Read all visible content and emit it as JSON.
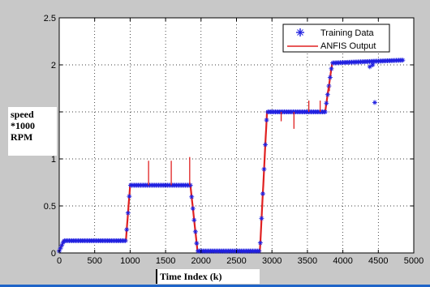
{
  "chart_data": {
    "type": "line",
    "xlabel": "Time Index (k)",
    "ylabel_lines": [
      "speed",
      "*1000",
      "RPM"
    ],
    "xlim": [
      0,
      5000
    ],
    "ylim": [
      0,
      2.5
    ],
    "xticks": [
      0,
      500,
      1000,
      1500,
      2000,
      2500,
      3000,
      3500,
      4000,
      4500,
      5000
    ],
    "yticks": [
      0,
      0.5,
      1,
      1.5,
      2,
      2.5
    ],
    "grid": true,
    "legend_position": "top-right",
    "colors": {
      "training": "#2020e0",
      "anfis": "#e02020"
    },
    "series": [
      {
        "name": "Training Data",
        "style": "markers",
        "segments": [
          {
            "x": [
              0,
              60
            ],
            "y": [
              0.02,
              0.12
            ]
          },
          {
            "x": [
              60,
              940
            ],
            "y": [
              0.13,
              0.13
            ]
          },
          {
            "x": [
              940,
              1000
            ],
            "y": [
              0.13,
              0.72
            ]
          },
          {
            "x": [
              1000,
              1850
            ],
            "y": [
              0.72,
              0.72
            ]
          },
          {
            "x": [
              1850,
              1950
            ],
            "y": [
              0.72,
              0.02
            ]
          },
          {
            "x": [
              1950,
              2830
            ],
            "y": [
              0.02,
              0.02
            ]
          },
          {
            "x": [
              2830,
              2930
            ],
            "y": [
              0.02,
              1.5
            ]
          },
          {
            "x": [
              2930,
              3750
            ],
            "y": [
              1.5,
              1.5
            ]
          },
          {
            "x": [
              3750,
              3850
            ],
            "y": [
              1.5,
              2.02
            ]
          },
          {
            "x": [
              3850,
              4850
            ],
            "y": [
              2.02,
              2.05
            ]
          }
        ],
        "outliers": [
          {
            "x": 4450,
            "y": 1.6
          },
          {
            "x": 4420,
            "y": 2.0
          },
          {
            "x": 4380,
            "y": 1.98
          }
        ]
      },
      {
        "name": "ANFIS Output",
        "style": "line",
        "spikes": [
          {
            "x": 1260,
            "y0": 0.72,
            "y1": 0.98
          },
          {
            "x": 1580,
            "y0": 0.72,
            "y1": 0.98
          },
          {
            "x": 1840,
            "y0": 0.72,
            "y1": 1.02
          },
          {
            "x": 3130,
            "y0": 1.5,
            "y1": 1.4
          },
          {
            "x": 3310,
            "y0": 1.5,
            "y1": 1.32
          },
          {
            "x": 3520,
            "y0": 1.5,
            "y1": 1.62
          },
          {
            "x": 3680,
            "y0": 1.5,
            "y1": 1.62
          },
          {
            "x": 3810,
            "y0": 1.72,
            "y1": 1.78
          }
        ]
      }
    ]
  }
}
